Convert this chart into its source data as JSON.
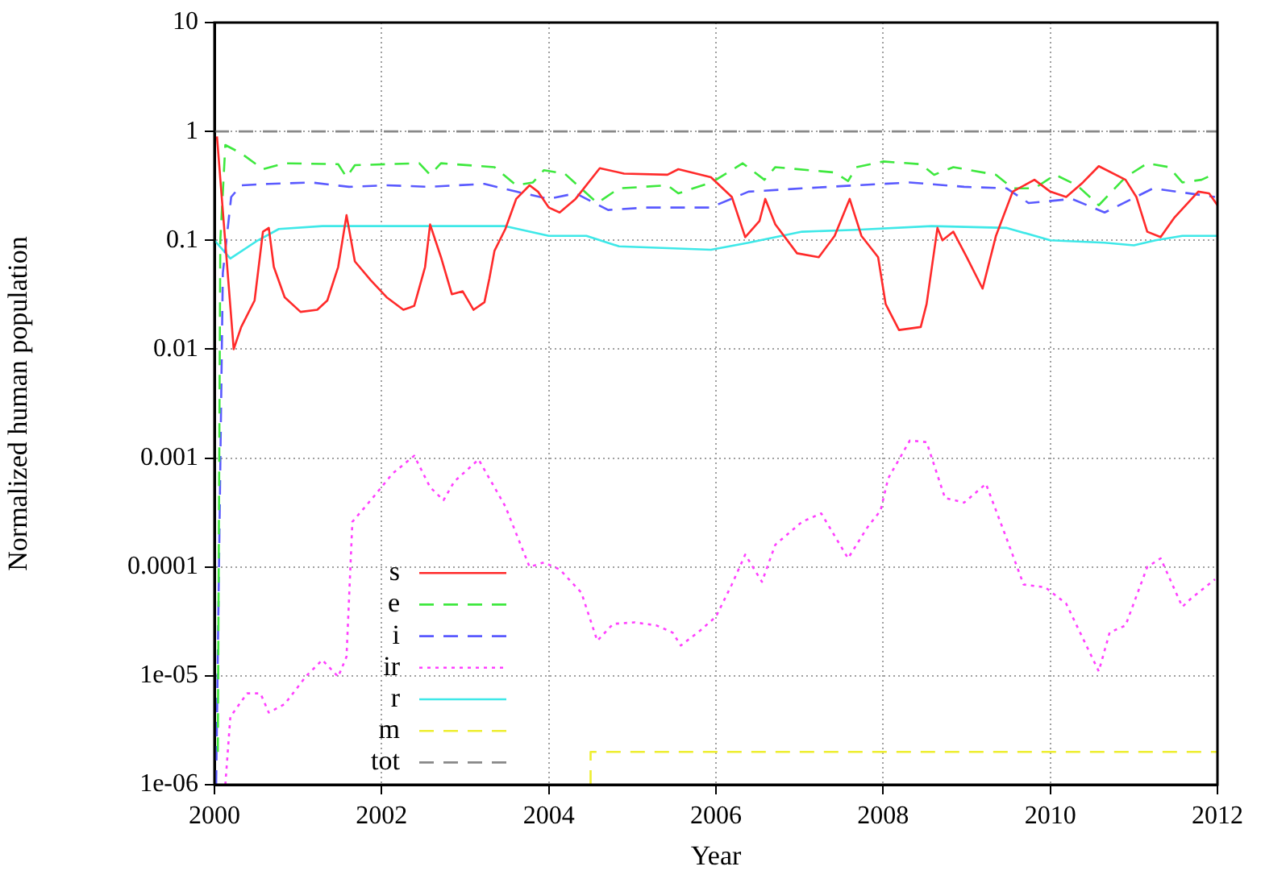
{
  "chart_data": {
    "type": "line",
    "xlabel": "Year",
    "ylabel": "Normalized human population",
    "log": "y",
    "grid": true,
    "legend": "bottom left",
    "xlim": [
      2000,
      2012
    ],
    "xticks": [
      2000,
      2002,
      2004,
      2006,
      2008,
      2010,
      2012
    ],
    "ylim": [
      1e-06,
      10
    ],
    "yticks": [
      {
        "value": 1e-06,
        "label": "1e-06"
      },
      {
        "value": 1e-05,
        "label": "1e-05"
      },
      {
        "value": 0.0001,
        "label": "0.0001"
      },
      {
        "value": 0.001,
        "label": "0.001"
      },
      {
        "value": 0.01,
        "label": "0.01"
      },
      {
        "value": 0.1,
        "label": "0.1"
      },
      {
        "value": 1,
        "label": "1"
      },
      {
        "value": 10,
        "label": "10"
      }
    ],
    "series": [
      {
        "name": "s",
        "color": "#ff2a2a",
        "line_style": "solid",
        "x": [
          2000.03,
          2000.23,
          2000.32,
          2000.48,
          2000.58,
          2000.65,
          2000.71,
          2000.84,
          2001.03,
          2001.23,
          2001.35,
          2001.48,
          2001.58,
          2001.68,
          2001.87,
          2002.06,
          2002.26,
          2002.39,
          2002.52,
          2002.58,
          2002.71,
          2002.84,
          2002.97,
          2003.1,
          2003.23,
          2003.29,
          2003.35,
          2003.48,
          2003.61,
          2003.77,
          2003.87,
          2004,
          2004.13,
          2004.32,
          2004.61,
          2004.9,
          2005.42,
          2005.55,
          2005.94,
          2006.19,
          2006.35,
          2006.52,
          2006.59,
          2006.71,
          2006.97,
          2007.23,
          2007.42,
          2007.6,
          2007.74,
          2007.94,
          2008.03,
          2008.19,
          2008.45,
          2008.52,
          2008.65,
          2008.71,
          2008.84,
          2009,
          2009.19,
          2009.35,
          2009.55,
          2009.81,
          2010,
          2010.19,
          2010.39,
          2010.58,
          2010.9,
          2011.03,
          2011.16,
          2011.32,
          2011.48,
          2011.77,
          2011.9,
          2012
        ],
        "values": [
          0.9,
          0.01,
          0.016,
          0.028,
          0.12,
          0.13,
          0.057,
          0.03,
          0.022,
          0.023,
          0.028,
          0.057,
          0.17,
          0.064,
          0.043,
          0.03,
          0.023,
          0.025,
          0.057,
          0.14,
          0.07,
          0.032,
          0.034,
          0.023,
          0.027,
          0.045,
          0.08,
          0.127,
          0.24,
          0.32,
          0.28,
          0.2,
          0.18,
          0.24,
          0.46,
          0.41,
          0.4,
          0.45,
          0.38,
          0.25,
          0.107,
          0.15,
          0.24,
          0.14,
          0.076,
          0.07,
          0.11,
          0.24,
          0.11,
          0.07,
          0.026,
          0.015,
          0.016,
          0.026,
          0.13,
          0.1,
          0.12,
          0.07,
          0.036,
          0.11,
          0.28,
          0.36,
          0.28,
          0.25,
          0.34,
          0.48,
          0.36,
          0.25,
          0.12,
          0.107,
          0.16,
          0.28,
          0.27,
          0.21
        ]
      },
      {
        "name": "e",
        "color": "#3ee83e",
        "line_style": "dashed",
        "x": [
          2000.04,
          2000.07,
          2000.13,
          2000.32,
          2000.58,
          2000.84,
          2001.48,
          2001.58,
          2001.68,
          2002.45,
          2002.58,
          2002.71,
          2003.35,
          2003.61,
          2003.81,
          2003.94,
          2004.19,
          2004.58,
          2004.84,
          2005.42,
          2005.55,
          2005.94,
          2006,
          2006.32,
          2006.58,
          2006.71,
          2007.42,
          2007.58,
          2007.68,
          2008,
          2008.45,
          2008.61,
          2008.84,
          2009.35,
          2009.55,
          2009.81,
          2010.06,
          2010.32,
          2010.58,
          2010.9,
          2011.16,
          2011.42,
          2011.58,
          2011.81,
          2012
        ],
        "values": [
          2e-06,
          0.1,
          0.75,
          0.63,
          0.45,
          0.51,
          0.5,
          0.38,
          0.49,
          0.51,
          0.4,
          0.51,
          0.47,
          0.32,
          0.34,
          0.44,
          0.41,
          0.22,
          0.3,
          0.32,
          0.27,
          0.34,
          0.36,
          0.51,
          0.36,
          0.47,
          0.42,
          0.35,
          0.47,
          0.53,
          0.5,
          0.4,
          0.47,
          0.4,
          0.3,
          0.3,
          0.4,
          0.32,
          0.21,
          0.38,
          0.51,
          0.47,
          0.34,
          0.36,
          0.42
        ]
      },
      {
        "name": "i",
        "color": "#5a5aff",
        "line_style": "dashed",
        "x": [
          2000.02,
          2000.1,
          2000.2,
          2000.32,
          2000.65,
          2001.16,
          2001.61,
          2002.06,
          2002.58,
          2003.23,
          2003.61,
          2004,
          2004.32,
          2004.71,
          2005.16,
          2005.94,
          2006,
          2006.39,
          2007.03,
          2007.68,
          2008.32,
          2008.97,
          2009.48,
          2009.74,
          2010.26,
          2010.65,
          2011.23,
          2011.97
        ],
        "values": [
          1e-06,
          0.05,
          0.25,
          0.32,
          0.33,
          0.34,
          0.31,
          0.32,
          0.31,
          0.33,
          0.28,
          0.24,
          0.27,
          0.19,
          0.2,
          0.2,
          0.21,
          0.28,
          0.3,
          0.32,
          0.34,
          0.31,
          0.3,
          0.22,
          0.24,
          0.18,
          0.3,
          0.25
        ]
      },
      {
        "name": "ir",
        "color": "#ff40ff",
        "line_style": "dotted",
        "x": [
          2000.13,
          2000.19,
          2000.39,
          2000.55,
          2000.65,
          2000.84,
          2001.1,
          2001.29,
          2001.48,
          2001.58,
          2001.65,
          2001.87,
          2002.13,
          2002.39,
          2002.58,
          2002.74,
          2002.87,
          2003.16,
          2003.48,
          2003.77,
          2003.94,
          2004.13,
          2004.39,
          2004.58,
          2004.77,
          2005.03,
          2005.29,
          2005.48,
          2005.58,
          2005.81,
          2006,
          2006.19,
          2006.35,
          2006.55,
          2006.71,
          2007.03,
          2007.26,
          2007.58,
          2007.81,
          2007.97,
          2008.06,
          2008.32,
          2008.52,
          2008.74,
          2008.97,
          2009.23,
          2009.48,
          2009.68,
          2009.94,
          2010.19,
          2010.58,
          2010.71,
          2010.9,
          2011.16,
          2011.32,
          2011.58,
          2011.68,
          2011.97
        ],
        "values": [
          1e-06,
          4.2e-06,
          6.9e-06,
          6.9e-06,
          4.6e-06,
          5.5e-06,
          1e-05,
          1.4e-05,
          9.8e-06,
          1.5e-05,
          0.00026,
          0.00041,
          0.00072,
          0.00105,
          0.00054,
          0.00041,
          0.00061,
          0.00097,
          0.00036,
          0.0001,
          0.00011,
          9.5e-05,
          5.8e-05,
          2.1e-05,
          3e-05,
          3.1e-05,
          2.9e-05,
          2.5e-05,
          1.9e-05,
          2.6e-05,
          3.5e-05,
          6.9e-05,
          0.00013,
          7.3e-05,
          0.00016,
          0.00026,
          0.00031,
          0.00012,
          0.00023,
          0.00033,
          0.00065,
          0.00145,
          0.0014,
          0.00043,
          0.00039,
          0.00058,
          0.00018,
          6.9e-05,
          6.5e-05,
          4.6e-05,
          1.1e-05,
          2.5e-05,
          2.9e-05,
          0.0001,
          0.00012,
          4.3e-05,
          5.1e-05,
          7.7e-05
        ]
      },
      {
        "name": "r",
        "color": "#3ee8e8",
        "line_style": "solid",
        "x": [
          2000,
          2000.19,
          2000.52,
          2000.77,
          2001.29,
          2002.58,
          2003.48,
          2004,
          2004.45,
          2004.84,
          2005.94,
          2006.39,
          2007.03,
          2007.68,
          2008.58,
          2009.48,
          2010,
          2010.65,
          2011,
          2011.26,
          2011.58,
          2012
        ],
        "values": [
          0.1,
          0.068,
          0.1,
          0.127,
          0.135,
          0.135,
          0.135,
          0.11,
          0.11,
          0.088,
          0.082,
          0.095,
          0.12,
          0.125,
          0.135,
          0.13,
          0.1,
          0.095,
          0.09,
          0.1,
          0.11,
          0.11
        ]
      },
      {
        "name": "m",
        "color": "#eeee30",
        "line_style": "dashed",
        "x": [
          2004.5,
          2004.5,
          2012
        ],
        "values": [
          1e-06,
          2e-06,
          2e-06
        ]
      },
      {
        "name": "tot",
        "color": "#888888",
        "line_style": "dashed",
        "x": [
          2000,
          2012
        ],
        "values": [
          1,
          1
        ]
      }
    ]
  }
}
